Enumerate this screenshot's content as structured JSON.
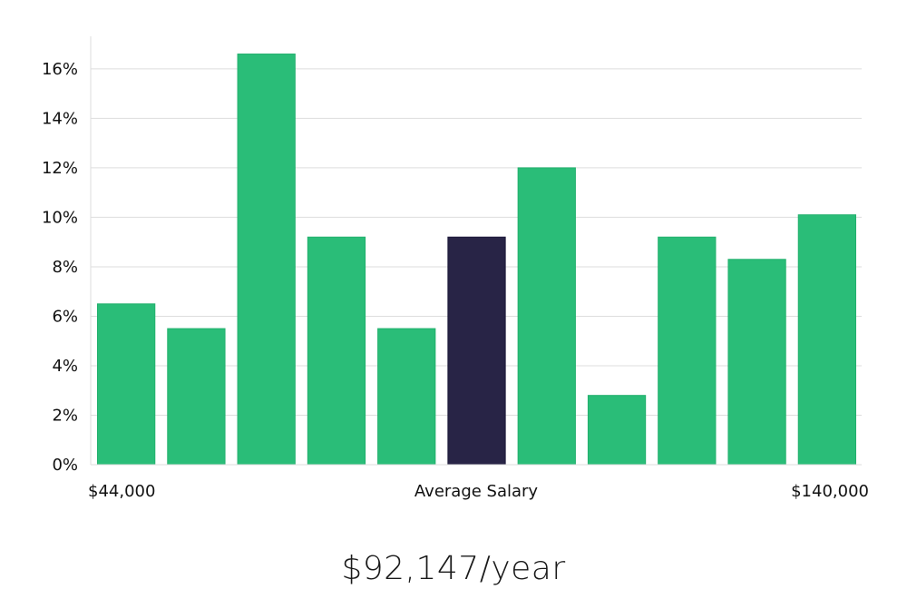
{
  "chart_data": {
    "type": "bar",
    "categories": [
      "1",
      "2",
      "3",
      "4",
      "5",
      "6",
      "7",
      "8",
      "9",
      "10",
      "11"
    ],
    "values": [
      6.5,
      5.5,
      16.6,
      9.2,
      5.5,
      9.2,
      12.0,
      2.8,
      9.2,
      8.3,
      10.1
    ],
    "highlight_index": 5,
    "ylim": [
      0,
      17.5
    ],
    "yticks": [
      0,
      2,
      4,
      6,
      8,
      10,
      12,
      14,
      16
    ],
    "ytick_format": "%",
    "grid": true,
    "colors": {
      "bar": "#2abd78",
      "highlight": "#282446",
      "grid": "#dddddd",
      "axis": "#dddddd"
    },
    "x_labels": {
      "left": "$44,000",
      "center": "Average Salary",
      "right": "$140,000"
    }
  },
  "headline": {
    "salary": "$92,147/year"
  }
}
